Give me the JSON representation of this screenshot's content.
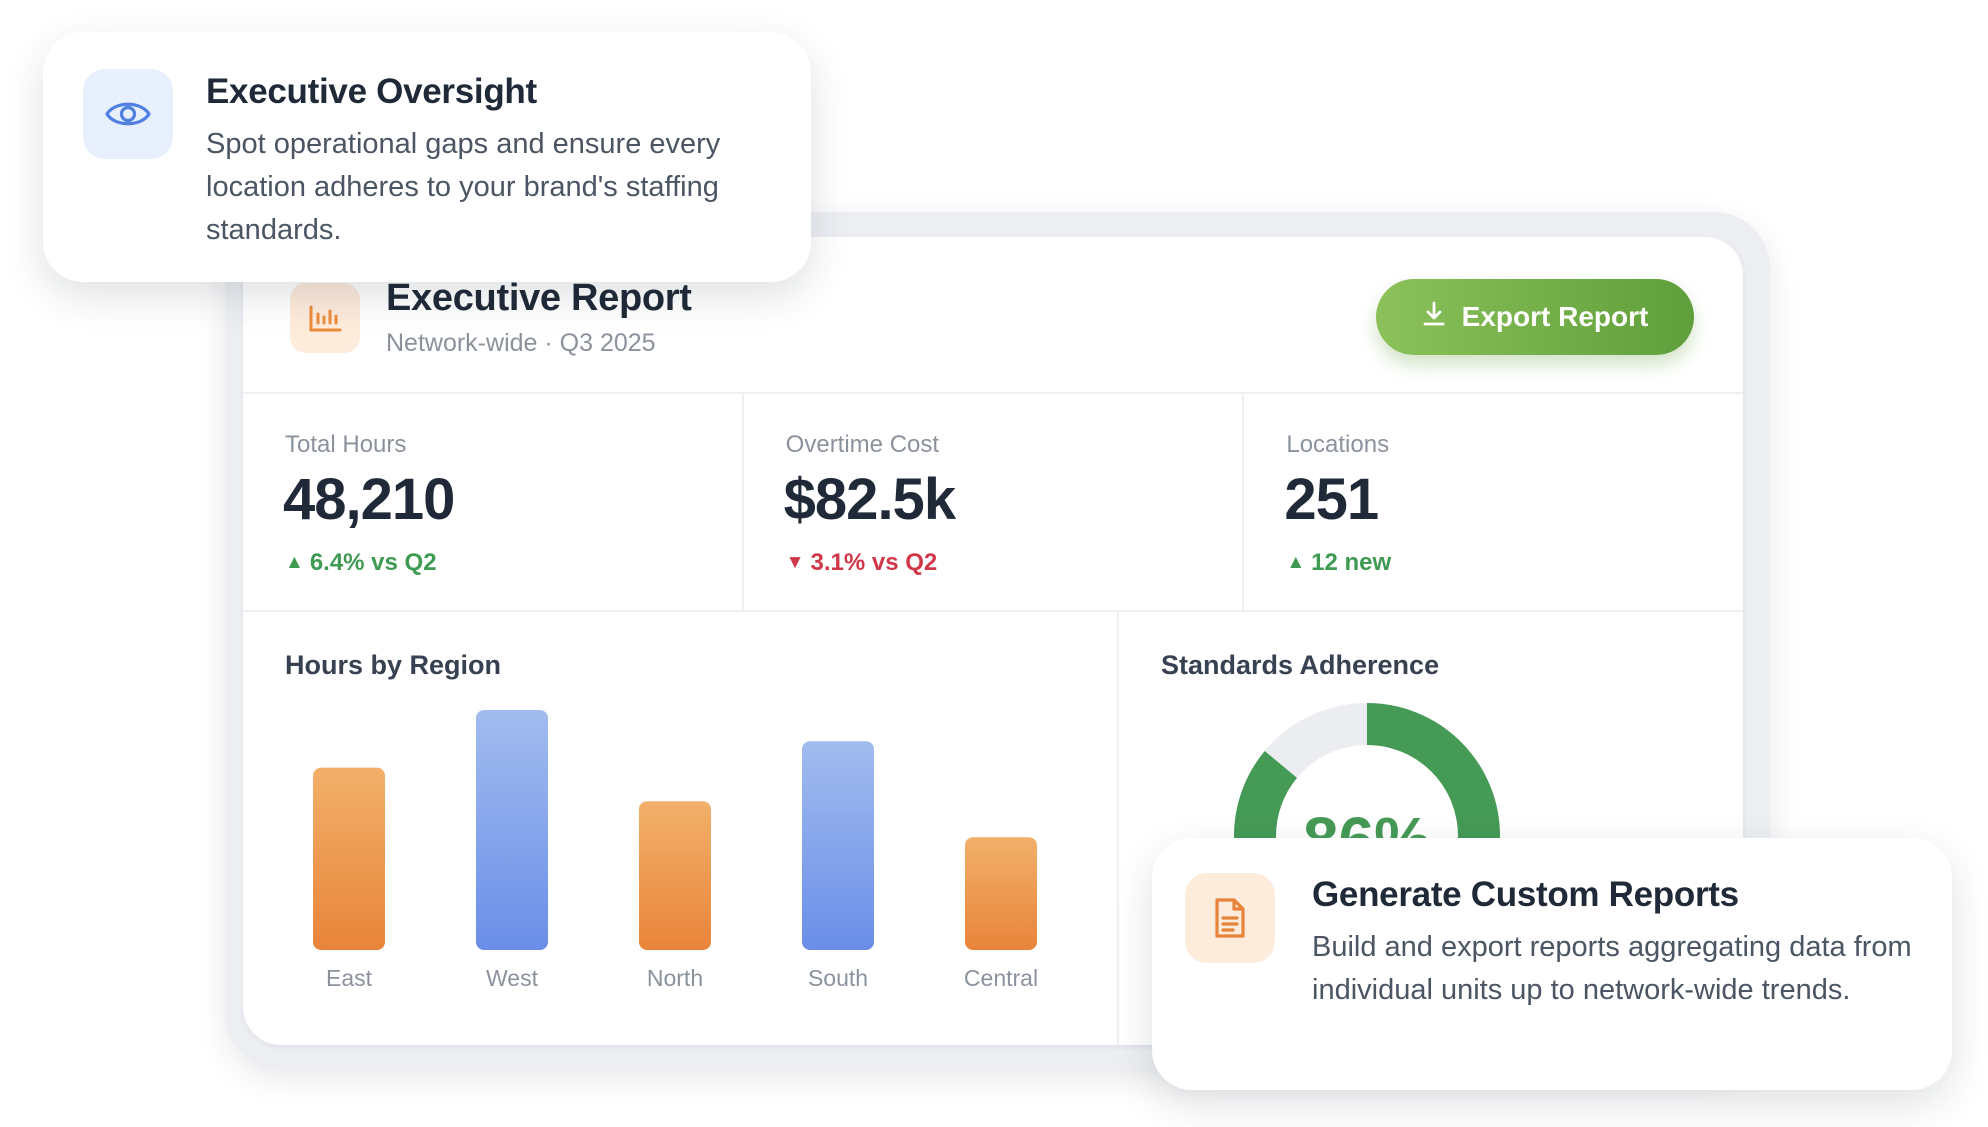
{
  "report": {
    "title": "Executive Report",
    "subtitle": "Network-wide · Q3 2025",
    "export_label": "Export Report",
    "header_icon": "bar-chart-icon",
    "export_icon": "download-icon"
  },
  "stats": [
    {
      "label": "Total Hours",
      "value": "48,210",
      "delta": "6.4% vs Q2",
      "direction": "up"
    },
    {
      "label": "Overtime Cost",
      "value": "$82.5k",
      "delta": "3.1% vs Q2",
      "direction": "down"
    },
    {
      "label": "Locations",
      "value": "251",
      "delta": "12 new",
      "direction": "up"
    }
  ],
  "hours_chart": {
    "title": "Hours by Region"
  },
  "adherence": {
    "title": "Standards Adherence",
    "value_label": "86%",
    "percent": 86
  },
  "chart_data": {
    "type": "bar",
    "title": "Hours by Region",
    "categories": [
      "East",
      "West",
      "North",
      "South",
      "Central"
    ],
    "values": [
      76,
      100,
      62,
      87,
      47
    ],
    "bar_colors": [
      "#ec8c3b",
      "#6f93e8",
      "#ec8c3b",
      "#6f93e8",
      "#ec8c3b"
    ],
    "xlabel": "",
    "ylabel": ""
  },
  "callouts": {
    "top": {
      "icon": "eye-icon",
      "title": "Executive Oversight",
      "body": "Spot operational gaps and ensure every location adheres to your brand's staffing standards."
    },
    "bottom": {
      "icon": "document-icon",
      "title": "Generate Custom Reports",
      "body": "Build and export reports aggregating data from individual units up to network-wide trends."
    }
  },
  "colors": {
    "accent_green": "#5f9f3b",
    "up": "#3f9a52",
    "down": "#d0384a",
    "orange": "#ec8c3b",
    "blue": "#6f93e8",
    "donut_green": "#459a55"
  }
}
